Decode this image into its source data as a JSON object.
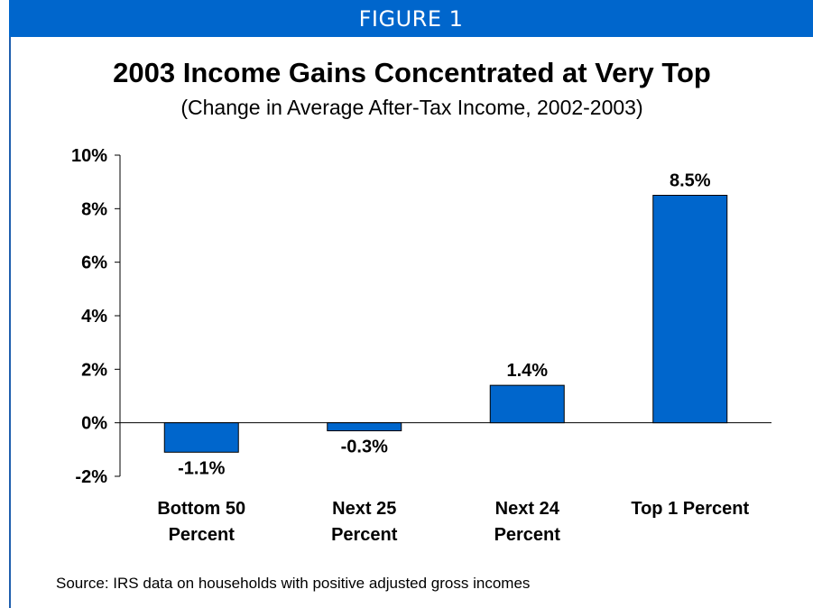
{
  "banner": {
    "label": "FIGURE 1",
    "color": "#0066cc"
  },
  "chart_data": {
    "type": "bar",
    "title": "2003 Income Gains Concentrated at Very Top",
    "subtitle": "(Change in Average After-Tax Income, 2002-2003)",
    "categories": [
      [
        "Bottom 50",
        "Percent"
      ],
      [
        "Next 25",
        "Percent"
      ],
      [
        "Next 24",
        "Percent"
      ],
      [
        "Top 1 Percent"
      ]
    ],
    "values": [
      -1.1,
      -0.3,
      1.4,
      8.5
    ],
    "data_labels": [
      "-1.1%",
      "-0.3%",
      "1.4%",
      "8.5%"
    ],
    "ylim": [
      -2,
      10
    ],
    "yticks": [
      -2,
      0,
      2,
      4,
      6,
      8,
      10
    ],
    "ytick_labels": [
      "-2%",
      "0%",
      "2%",
      "4%",
      "6%",
      "8%",
      "10%"
    ],
    "bar_color": "#0066cc",
    "grid": false,
    "xlabel": "",
    "ylabel": ""
  },
  "source": "Source: IRS data on households with positive adjusted gross incomes"
}
